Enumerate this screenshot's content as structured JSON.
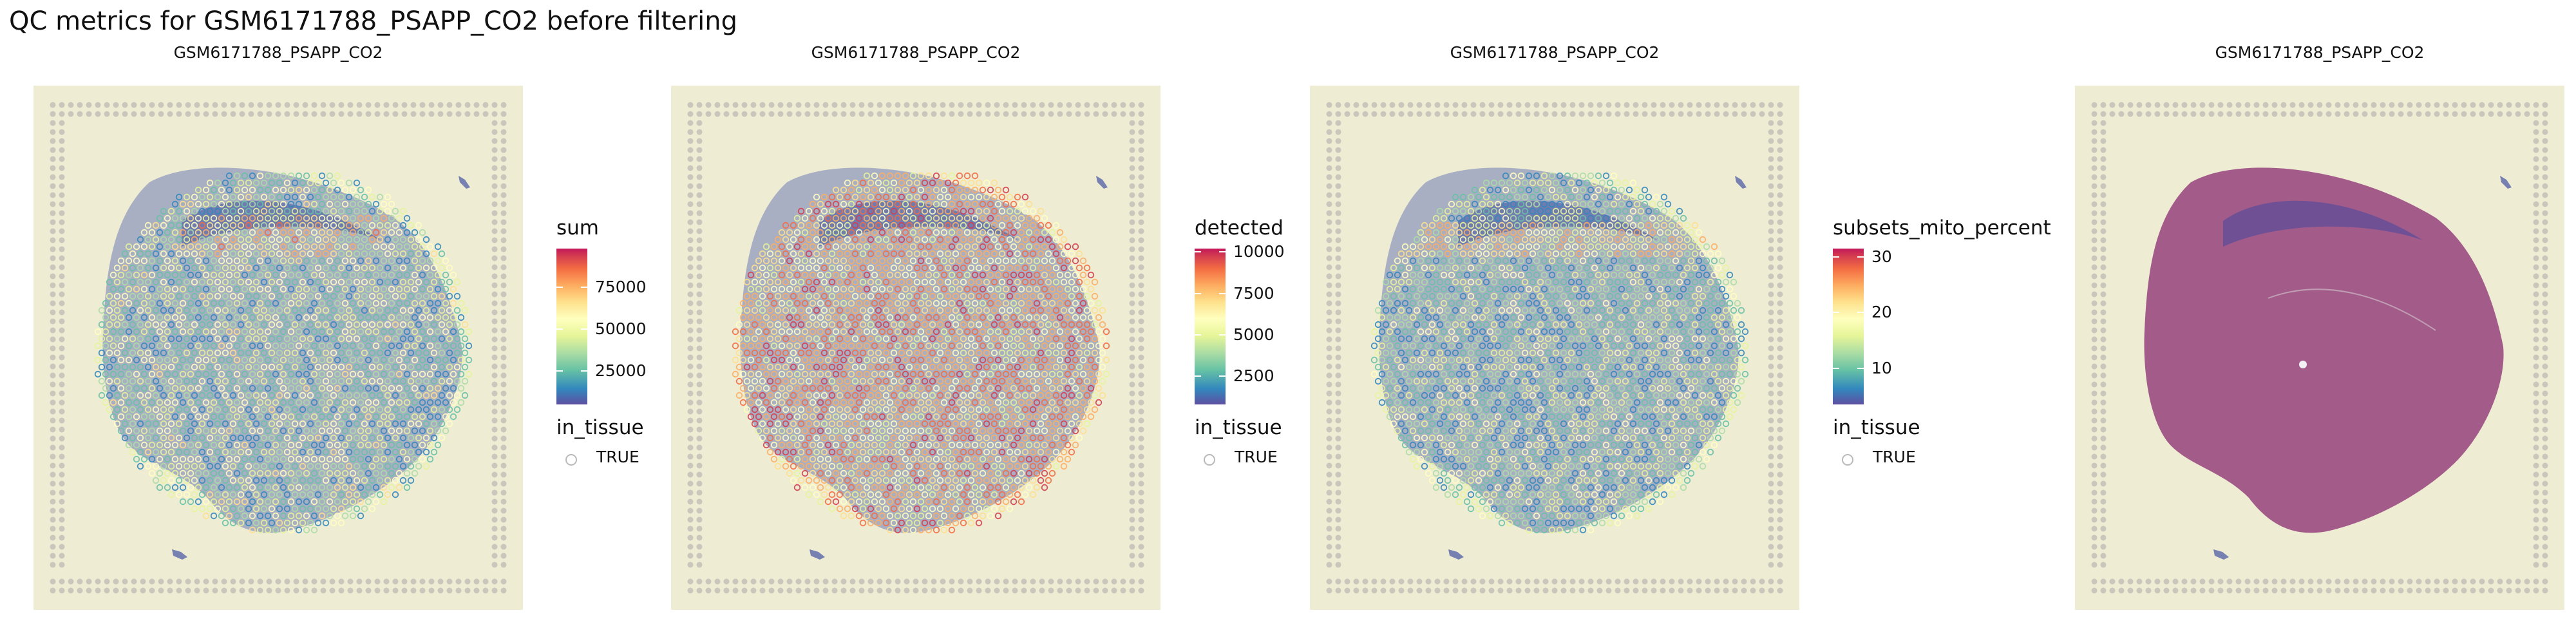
{
  "title": "QC metrics for GSM6171788_PSAPP_CO2 before filtering",
  "chart_data": [
    {
      "type": "spatial",
      "title": "GSM6171788_PSAPP_CO2",
      "color_legend": {
        "title": "sum",
        "range": [
          5000,
          98000
        ],
        "ticks": [
          25000,
          50000,
          75000
        ]
      },
      "shape_legend": {
        "title": "in_tissue",
        "entries": [
          "TRUE"
        ]
      }
    },
    {
      "type": "spatial",
      "title": "GSM6171788_PSAPP_CO2",
      "color_legend": {
        "title": "detected",
        "range": [
          800,
          10200
        ],
        "ticks": [
          2500,
          5000,
          7500,
          10000
        ]
      },
      "shape_legend": {
        "title": "in_tissue",
        "entries": [
          "TRUE"
        ]
      }
    },
    {
      "type": "spatial",
      "title": "GSM6171788_PSAPP_CO2",
      "color_legend": {
        "title": "subsets_mito_percent",
        "range": [
          3.5,
          31.5
        ],
        "ticks": [
          10,
          20,
          30
        ]
      },
      "shape_legend": {
        "title": "in_tissue",
        "entries": [
          "TRUE"
        ]
      }
    },
    {
      "type": "image",
      "title": "GSM6171788_PSAPP_CO2"
    }
  ],
  "colors": {
    "background": "#efecd4",
    "tissue_pink": "#9c4f83",
    "tissue_blue": "#6f7db5",
    "fiducial": "#c9c6bc"
  }
}
